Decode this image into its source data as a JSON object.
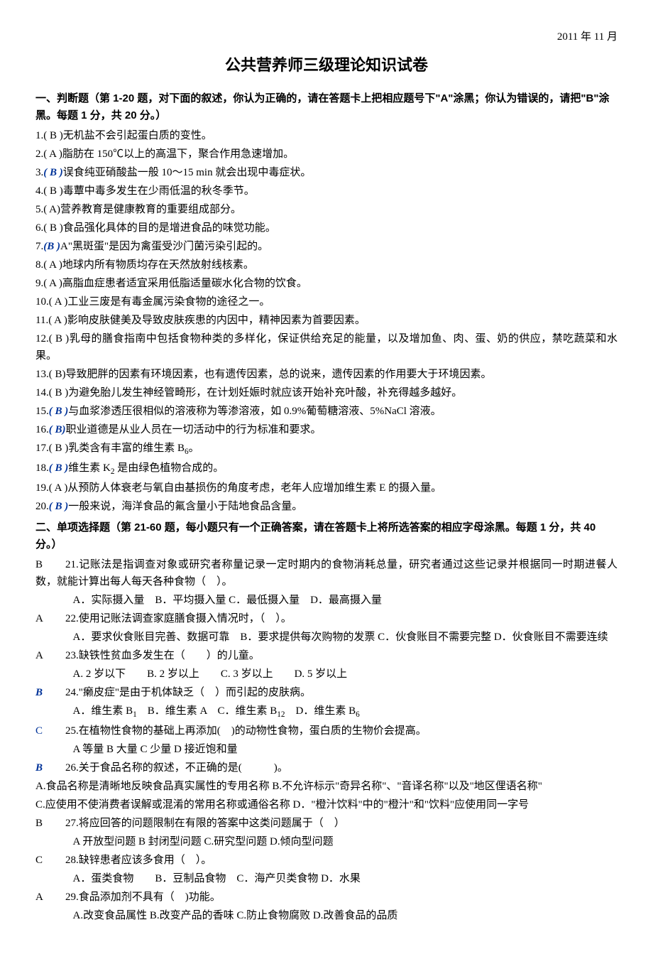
{
  "dateHeader": "2011 年 11 月",
  "title": "公共营养师三级理论知识试卷",
  "section1": {
    "header": "一、判断题（第 1-20 题，对下面的叙述，你认为正确的，请在答题卡上把相应题号下\"A\"涂黑；你认为错误的，请把\"B\"涂黑。每题 1 分，共 20 分。）",
    "items": [
      {
        "n": "1.",
        "a": "( B )",
        "blue": false,
        "t": "无机盐不会引起蛋白质的变性。"
      },
      {
        "n": "2.",
        "a": "( A )",
        "blue": false,
        "t": "脂肪在 150℃以上的高温下，聚合作用急速增加。"
      },
      {
        "n": "3.",
        "a": "( B )",
        "blue": true,
        "t": "误食纯亚硝酸盐一般 10～15 min 就会出现中毒症状。"
      },
      {
        "n": "4.",
        "a": "( B )",
        "blue": false,
        "t": "毒蕈中毒多发生在少雨低温的秋冬季节。"
      },
      {
        "n": "5.",
        "a": "( A)",
        "blue": false,
        "t": "营养教育是健康教育的重要组成部分。"
      },
      {
        "n": "6.",
        "a": "( B )",
        "blue": false,
        "t": "食品强化具体的目的是增进食品的味觉功能。"
      },
      {
        "n": "7.",
        "a": "(B )",
        "blue": true,
        "t": "A\"黑斑蛋\"是因为禽蛋受沙门菌污染引起的。"
      },
      {
        "n": "8.",
        "a": "( A )",
        "blue": false,
        "t": "地球内所有物质均存在天然放射线核素。"
      },
      {
        "n": "9.",
        "a": "( A )",
        "blue": false,
        "t": "高脂血症患者适宜采用低脂适量碳水化合物的饮食。"
      },
      {
        "n": "10.",
        "a": "( A )",
        "blue": false,
        "t": "工业三废是有毒金属污染食物的途径之一。"
      },
      {
        "n": "11.",
        "a": "( A )",
        "blue": false,
        "t": "影响皮肤健美及导致皮肤疾患的内因中，精神因素为首要因素。"
      },
      {
        "n": "12.",
        "a": "( B )",
        "blue": false,
        "t": "乳母的膳食指南中包括食物种类的多样化，保证供给充足的能量，以及增加鱼、肉、蛋、奶的供应，禁吃蔬菜和水果。"
      },
      {
        "n": "13.",
        "a": "( B)",
        "blue": false,
        "t": "导致肥胖的因素有环境因素，也有遗传因素，总的说来，遗传因素的作用要大于环境因素。"
      },
      {
        "n": "14.",
        "a": "( B )",
        "blue": false,
        "t": "为避免胎儿发生神经管畸形，在计划妊娠时就应该开始补充叶酸，补充得越多越好。"
      },
      {
        "n": "15.",
        "a": "( B )",
        "blue": true,
        "t": "与血浆渗透压很相似的溶液称为等渗溶液，如 0.9%葡萄糖溶液、5%NaCl 溶液。"
      },
      {
        "n": "16.",
        "a": "( B)",
        "blue": true,
        "t": "职业道德是从业人员在一切活动中的行为标准和要求。"
      },
      {
        "n": "17.",
        "a": "( B )",
        "blue": false,
        "t": "乳类含有丰富的维生素 B₆。"
      },
      {
        "n": "18.",
        "a": "( B )",
        "blue": true,
        "t": "维生素 K₂ 是由绿色植物合成的。"
      },
      {
        "n": "19.",
        "a": "( A )",
        "blue": false,
        "t": "从预防人体衰老与氧自由基损伤的角度考虑，老年人应增加维生素 E 的摄入量。"
      },
      {
        "n": "20.",
        "a": "( B )",
        "blue": true,
        "t": "一般来说，海洋食品的氟含量小于陆地食品含量。"
      }
    ]
  },
  "section2": {
    "header": "二、单项选择题（第 21-60 题，每小题只有一个正确答案，请在答题卡上将所选答案的相应字母涂黑。每题 1 分，共 40 分。）",
    "items": [
      {
        "lead": "B",
        "blue": false,
        "n": "21.",
        "stem": "记账法是指调查对象或研究者称量记录一定时期内的食物消耗总量，研究者通过这些记录并根据同一时期进餐人数，就能计算出每人每天各种食物（　）。",
        "opts": "A．实际摄入量　B．平均摄入量 C．最低摄入量　D．最高摄入量"
      },
      {
        "lead": "A",
        "blue": false,
        "n": "22.",
        "stem": "使用记账法调查家庭膳食摄入情况时，（　）。",
        "opts": "A．要求伙食账目完善、数据可靠　B．要求提供每次购物的发票 C．伙食账目不需要完整 D．伙食账目不需要连续"
      },
      {
        "lead": "A",
        "blue": false,
        "n": "23.",
        "stem": "缺铁性贫血多发生在（　　）的儿童。",
        "opts": "A. 2 岁以下　　B. 2 岁以上　　C. 3 岁以上　　D. 5 岁以上"
      },
      {
        "lead": "B",
        "blue": true,
        "n": "24.",
        "stem": "\"癞皮症\"是由于机体缺乏（　）而引起的皮肤病。",
        "opts": "A．维生素 B₁　B．维生素 A　C．维生素 B₁₂　D．维生素 B₆"
      },
      {
        "lead": "C",
        "blue": "plain",
        "n": "25.",
        "stem": "在植物性食物的基础上再添加(　)的动物性食物，蛋白质的生物价会提高。",
        "opts": "A 等量  B 大量  C 少量  D 接近饱和量"
      },
      {
        "lead": "B",
        "blue": true,
        "n": "26.",
        "stem": "关于食品名称的叙述，不正确的是(　　　)。",
        "opts": "A.食品名称是清晰地反映食品真实属性的专用名称  B.不允许标示\"奇异名称\"、\"音译名称\"以及\"地区俚语名称\"\nC.应使用不使消费者误解或混淆的常用名称或通俗名称  D．\"橙汁饮料\"中的\"橙汁\"和\"饮料\"应使用同一字号"
      },
      {
        "lead": "B",
        "blue": false,
        "n": "27.",
        "stem": "将应回答的问题限制在有限的答案中这类问题属于（　）",
        "opts": "A 开放型问题 B 封闭型问题 C.研究型问题 D.倾向型问题"
      },
      {
        "lead": "C",
        "blue": false,
        "n": "28.",
        "stem": "缺锌患者应该多食用（　）。",
        "opts": "A．蛋类食物　　B．豆制品食物　C．海产贝类食物  D．水果"
      },
      {
        "lead": "A",
        "blue": false,
        "n": "29.",
        "stem": "食品添加剂不具有（　)功能。",
        "opts": "A.改变食品属性  B.改变产品的香味  C.防止食物腐败  D.改善食品的品质"
      }
    ]
  }
}
